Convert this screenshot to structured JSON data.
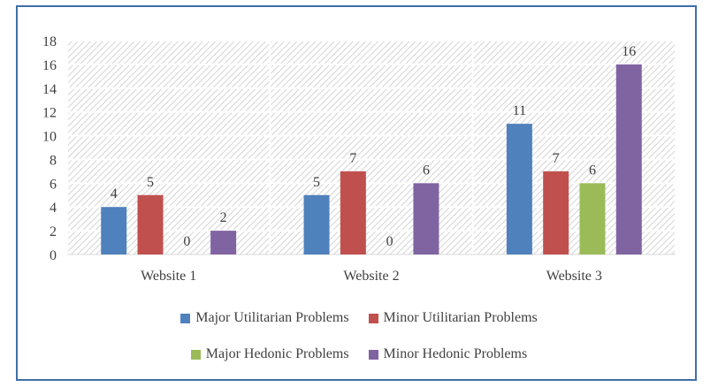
{
  "chart_data": {
    "type": "bar",
    "categories": [
      "Website 1",
      "Website 2",
      "Website 3"
    ],
    "series": [
      {
        "name": "Major Utilitarian Problems",
        "values": [
          4,
          5,
          11
        ],
        "color": "#4f81bd"
      },
      {
        "name": "Minor Utilitarian Problems",
        "values": [
          5,
          7,
          7
        ],
        "color": "#c0504d"
      },
      {
        "name": "Major Hedonic Problems",
        "values": [
          0,
          0,
          6
        ],
        "color": "#9bbb59"
      },
      {
        "name": "Minor Hedonic Problems",
        "values": [
          2,
          6,
          16
        ],
        "color": "#8064a2"
      }
    ],
    "data_labels": [
      [
        "4",
        "5",
        "11"
      ],
      [
        "5",
        "7",
        "7"
      ],
      [
        "0",
        "0",
        "6"
      ],
      [
        "2",
        "6",
        "16"
      ]
    ],
    "y_ticks": [
      "0",
      "2",
      "4",
      "6",
      "8",
      "10",
      "12",
      "14",
      "16",
      "18"
    ],
    "ylim": [
      0,
      18
    ],
    "grid": true,
    "legend_placement": "bottom",
    "title": "",
    "xlabel": "",
    "ylabel": ""
  },
  "legend": {
    "row1": [
      "Major Utilitarian Problems",
      "Minor Utilitarian Problems"
    ],
    "row2": [
      "Major Hedonic Problems",
      "Minor Hedonic Problems"
    ]
  }
}
